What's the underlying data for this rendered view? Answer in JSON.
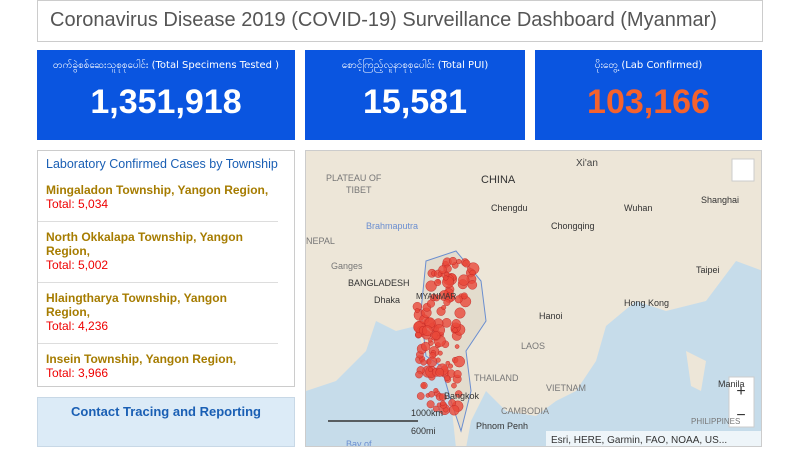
{
  "header": {
    "title": "Coronavirus Disease 2019 (COVID-19) Surveillance Dashboard (Myanmar)"
  },
  "cards": [
    {
      "label": "တက်ခွဲစစ်ဆေးသူစုစုပေါင်း (Total Specimens Tested )",
      "value": "1,351,918"
    },
    {
      "label": "စောင့်ကြည့်လူနာစုစုပေါင်း (Total PUI)",
      "value": "15,581"
    },
    {
      "label": "ပိုးတွေ့ (Lab Confirmed)",
      "value": "103,166"
    }
  ],
  "list": {
    "title": "Laboratory Confirmed Cases by Township",
    "items": [
      {
        "name": "Mingaladon Township, Yangon Region,",
        "total": "Total: 5,034"
      },
      {
        "name": "North Okkalapa Township, Yangon Region,",
        "total": "Total: 5,002"
      },
      {
        "name": "Hlaingtharya Township, Yangon Region,",
        "total": "Total: 4,236"
      },
      {
        "name": "Insein Township, Yangon Region,",
        "total": "Total: 3,966"
      }
    ]
  },
  "button": "Contact Tracing and Reporting",
  "map": {
    "labels": [
      "Xi'an",
      "PLATEAU OF",
      "TIBET",
      "CHINA",
      "Chengdu",
      "Wuhan",
      "Shanghai",
      "Chongqing",
      "NEPAL",
      "Brahmaputra",
      "Taipei",
      "BANGLADESH",
      "Dhaka",
      "MYANMAR",
      "Hong Kong",
      "Hanoi",
      "LAOS",
      "THAILAND",
      "VIETNAM",
      "Bangkok",
      "CAMBODIA",
      "Manila",
      "PHILIPPINES",
      "Phnom Penh",
      "Ganges",
      "Bay of"
    ],
    "scale_km": "1000km",
    "scale_mi": "600mi",
    "attribution": "Esri, HERE, Garmin, FAO, NOAA, US...",
    "zoom_in": "+",
    "zoom_out": "−"
  }
}
